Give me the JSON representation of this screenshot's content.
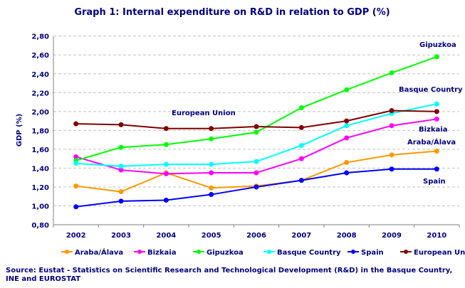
{
  "chart_data": {
    "type": "line",
    "title": "Graph 1: Internal expenditure on R&D in relation to GDP (%)",
    "xlabel": "",
    "ylabel": "GDP (%)",
    "categories": [
      "2002",
      "2003",
      "2004",
      "2005",
      "2006",
      "2007",
      "2008",
      "2009",
      "2010"
    ],
    "ylim": [
      0.8,
      2.8
    ],
    "yticks": [
      "0,80",
      "1,00",
      "1,20",
      "1,40",
      "1,60",
      "1,80",
      "2,00",
      "2,20",
      "2,40",
      "2,60",
      "2,80"
    ],
    "grid": true,
    "legend": "bottom",
    "series": [
      {
        "name": "Araba/Álava",
        "color": "#FF9900",
        "label": "Araba/Álava",
        "values": [
          1.21,
          1.15,
          1.35,
          1.19,
          1.21,
          1.27,
          1.46,
          1.54,
          1.58
        ]
      },
      {
        "name": "Bizkaia",
        "color": "#FF00FF",
        "label": "Bizkaia",
        "values": [
          1.52,
          1.38,
          1.34,
          1.35,
          1.35,
          1.5,
          1.72,
          1.85,
          1.92
        ]
      },
      {
        "name": "Gipuzkoa",
        "color": "#00FF00",
        "label": "Gipuzkoa",
        "values": [
          1.48,
          1.62,
          1.65,
          1.71,
          1.78,
          2.04,
          2.23,
          2.41,
          2.58
        ]
      },
      {
        "name": "Basque Country",
        "color": "#00FFFF",
        "label": "Basque Country",
        "values": [
          1.45,
          1.42,
          1.44,
          1.44,
          1.47,
          1.64,
          1.85,
          1.98,
          2.08
        ]
      },
      {
        "name": "Spain",
        "color": "#0000FF",
        "label": "Spain",
        "values": [
          0.99,
          1.05,
          1.06,
          1.12,
          1.2,
          1.27,
          1.35,
          1.39,
          1.39
        ]
      },
      {
        "name": "European Union",
        "color": "#800000",
        "label": "European Union",
        "values": [
          1.87,
          1.86,
          1.82,
          1.82,
          1.84,
          1.83,
          1.9,
          2.01,
          2.0
        ]
      }
    ]
  },
  "source": "Source: Eustat - Statistics on  Scientific Research and Technological Development (R&D) in the Basque Country, INE and EUROSTAT"
}
